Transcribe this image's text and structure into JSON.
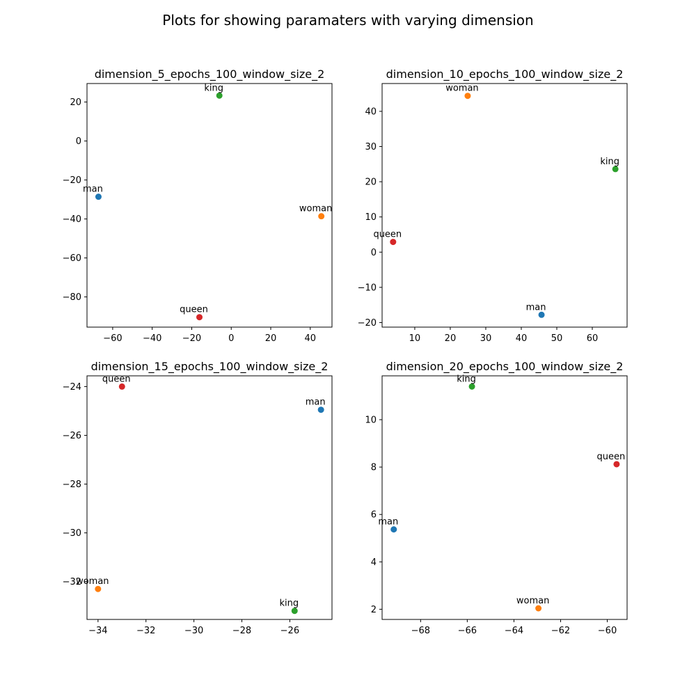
{
  "figure": {
    "suptitle": "Plots for showing paramaters with varying dimension"
  },
  "colors": {
    "man": "#1f77b4",
    "woman": "#ff7f0e",
    "king": "#2ca02c",
    "queen": "#d62728"
  },
  "chart_data": [
    {
      "type": "scatter",
      "title": "dimension_5_epochs_100_window_size_2",
      "xlabel": "",
      "ylabel": "",
      "xlim": [
        -73,
        51
      ],
      "ylim": [
        -95.5,
        29.5
      ],
      "xticks": [
        -60,
        -40,
        -20,
        0,
        20,
        40
      ],
      "yticks": [
        20,
        0,
        -20,
        -40,
        -60,
        -80
      ],
      "xticklabels": [
        "−60",
        "−40",
        "−20",
        "0",
        "20",
        "40"
      ],
      "yticklabels": [
        "20",
        "0",
        "−20",
        "−40",
        "−60",
        "−80"
      ],
      "points": [
        {
          "label": "man",
          "x": -67.2,
          "y": -28.6
        },
        {
          "label": "woman",
          "x": 45.6,
          "y": -38.6
        },
        {
          "label": "king",
          "x": -6.0,
          "y": 23.3
        },
        {
          "label": "queen",
          "x": -16.1,
          "y": -90.4
        }
      ]
    },
    {
      "type": "scatter",
      "title": "dimension_10_epochs_100_window_size_2",
      "xlabel": "",
      "ylabel": "",
      "xlim": [
        0.8,
        69.8
      ],
      "ylim": [
        -21.3,
        47.9
      ],
      "xticks": [
        10,
        20,
        30,
        40,
        50,
        60
      ],
      "yticks": [
        40,
        30,
        20,
        10,
        0,
        -10,
        -20
      ],
      "xticklabels": [
        "10",
        "20",
        "30",
        "40",
        "50",
        "60"
      ],
      "yticklabels": [
        "40",
        "30",
        "20",
        "10",
        "0",
        "−10",
        "−20"
      ],
      "points": [
        {
          "label": "man",
          "x": 45.7,
          "y": -17.8
        },
        {
          "label": "woman",
          "x": 24.9,
          "y": 44.4
        },
        {
          "label": "king",
          "x": 66.5,
          "y": 23.6
        },
        {
          "label": "queen",
          "x": 3.9,
          "y": 2.9
        }
      ]
    },
    {
      "type": "scatter",
      "title": "dimension_15_epochs_100_window_size_2",
      "xlabel": "",
      "ylabel": "",
      "xlim": [
        -34.46,
        -24.24
      ],
      "ylim": [
        -33.55,
        -23.56
      ],
      "xticks": [
        -34,
        -32,
        -30,
        -28,
        -26
      ],
      "yticks": [
        -24,
        -26,
        -28,
        -30,
        -32
      ],
      "xticklabels": [
        "−34",
        "−32",
        "−30",
        "−28",
        "−26"
      ],
      "yticklabels": [
        "−24",
        "−26",
        "−28",
        "−30",
        "−32"
      ],
      "points": [
        {
          "label": "man",
          "x": -24.7,
          "y": -24.95
        },
        {
          "label": "woman",
          "x": -34.0,
          "y": -32.3
        },
        {
          "label": "king",
          "x": -25.8,
          "y": -33.2
        },
        {
          "label": "queen",
          "x": -33.0,
          "y": -24.0
        }
      ]
    },
    {
      "type": "scatter",
      "title": "dimension_20_epochs_100_window_size_2",
      "xlabel": "",
      "ylabel": "",
      "xlim": [
        -69.65,
        -59.15
      ],
      "ylim": [
        1.57,
        11.85
      ],
      "xticks": [
        -68,
        -66,
        -64,
        -62,
        -60
      ],
      "yticks": [
        10,
        8,
        6,
        4,
        2
      ],
      "xticklabels": [
        "−68",
        "−66",
        "−64",
        "−62",
        "−60"
      ],
      "yticklabels": [
        "10",
        "8",
        "6",
        "4",
        "2"
      ],
      "points": [
        {
          "label": "man",
          "x": -69.15,
          "y": 5.37
        },
        {
          "label": "woman",
          "x": -62.95,
          "y": 2.04
        },
        {
          "label": "king",
          "x": -65.8,
          "y": 11.4
        },
        {
          "label": "queen",
          "x": -59.6,
          "y": 8.12
        }
      ]
    }
  ]
}
